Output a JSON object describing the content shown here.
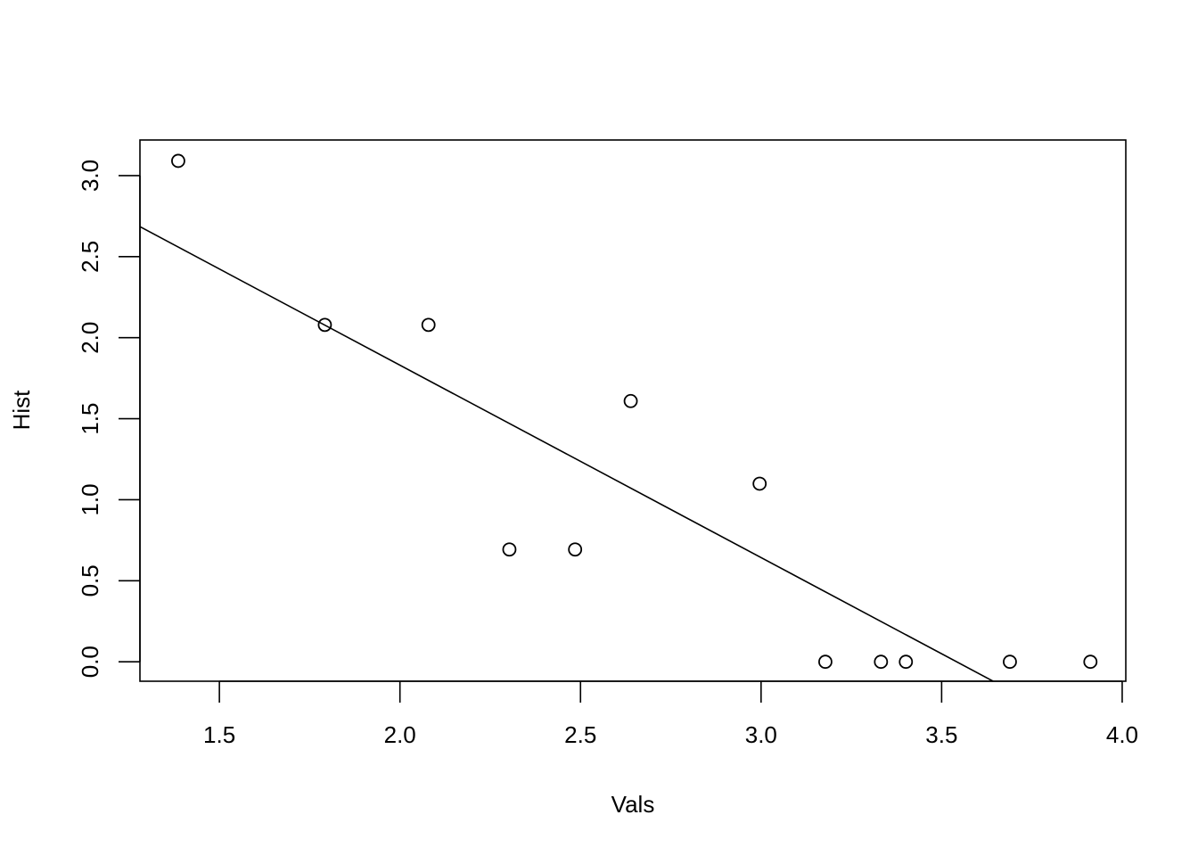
{
  "chart_data": {
    "type": "scatter",
    "xlabel": "Vals",
    "ylabel": "Hist",
    "xlim": [
      1.28,
      4.01
    ],
    "ylim": [
      -0.12,
      3.22
    ],
    "x_ticks": [
      1.5,
      2.0,
      2.5,
      3.0,
      3.5,
      4.0
    ],
    "x_tick_labels": [
      "1.5",
      "2.0",
      "2.5",
      "3.0",
      "3.5",
      "4.0"
    ],
    "y_ticks": [
      0.0,
      0.5,
      1.0,
      1.5,
      2.0,
      2.5,
      3.0
    ],
    "y_tick_labels": [
      "0.0",
      "0.5",
      "1.0",
      "1.5",
      "2.0",
      "2.5",
      "3.0"
    ],
    "grid": false,
    "points": [
      {
        "x": 1.386,
        "y": 3.091
      },
      {
        "x": 1.792,
        "y": 2.079
      },
      {
        "x": 2.079,
        "y": 2.079
      },
      {
        "x": 2.303,
        "y": 0.693
      },
      {
        "x": 2.485,
        "y": 0.693
      },
      {
        "x": 2.639,
        "y": 1.609
      },
      {
        "x": 2.996,
        "y": 1.099
      },
      {
        "x": 3.178,
        "y": 0.0
      },
      {
        "x": 3.332,
        "y": 0.0
      },
      {
        "x": 3.401,
        "y": 0.0
      },
      {
        "x": 3.689,
        "y": 0.0
      },
      {
        "x": 3.912,
        "y": 0.0
      }
    ],
    "fit_line": {
      "intercept": 4.205,
      "slope": -1.1873
    }
  }
}
